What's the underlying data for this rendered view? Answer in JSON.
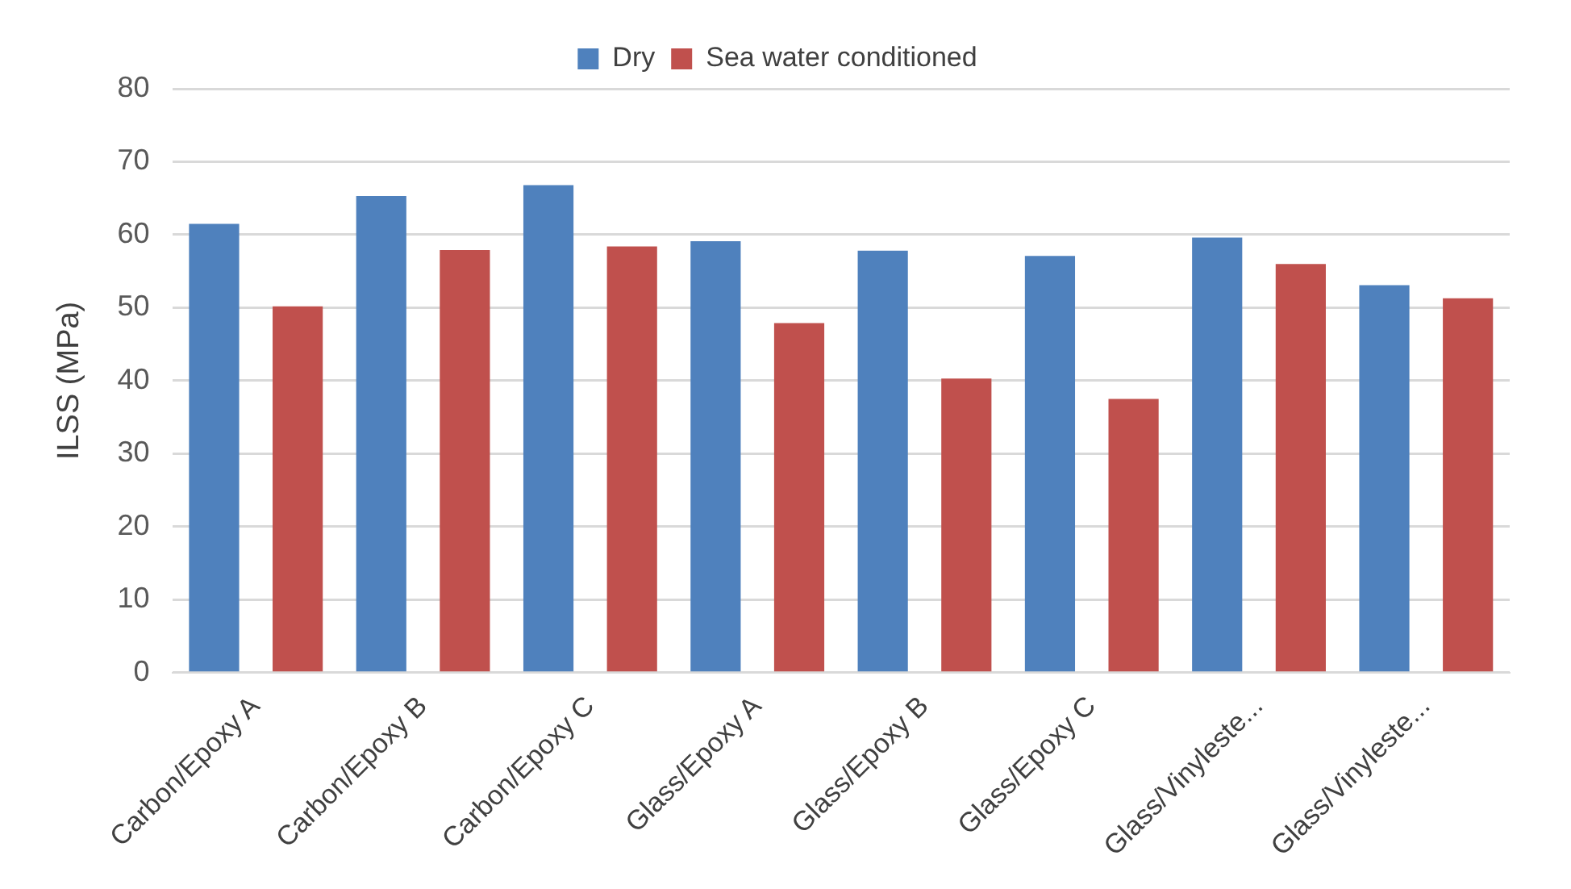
{
  "chart_data": {
    "type": "bar",
    "ylabel": "ILSS (MPa)",
    "categories": [
      "Carbon/Epoxy A",
      "Carbon/Epoxy B",
      "Carbon/Epoxy C",
      "Glass/Epoxy A",
      "Glass/Epoxy B",
      "Glass/Epoxy C",
      "Glass/Vinyleste...",
      "Glass/Vinyleste..."
    ],
    "series": [
      {
        "name": "Dry",
        "color": "#4f81bd",
        "values": [
          61.5,
          65.3,
          66.8,
          59.1,
          57.8,
          57.1,
          59.6,
          53.1
        ]
      },
      {
        "name": "Sea water conditioned",
        "color": "#c0504d",
        "values": [
          50.2,
          57.9,
          58.4,
          47.9,
          40.3,
          37.5,
          56.0,
          51.3
        ]
      }
    ],
    "ylim": [
      0,
      80
    ],
    "yticks": [
      0,
      10,
      20,
      30,
      40,
      50,
      60,
      70,
      80
    ],
    "grid": "y",
    "legend": "top"
  }
}
